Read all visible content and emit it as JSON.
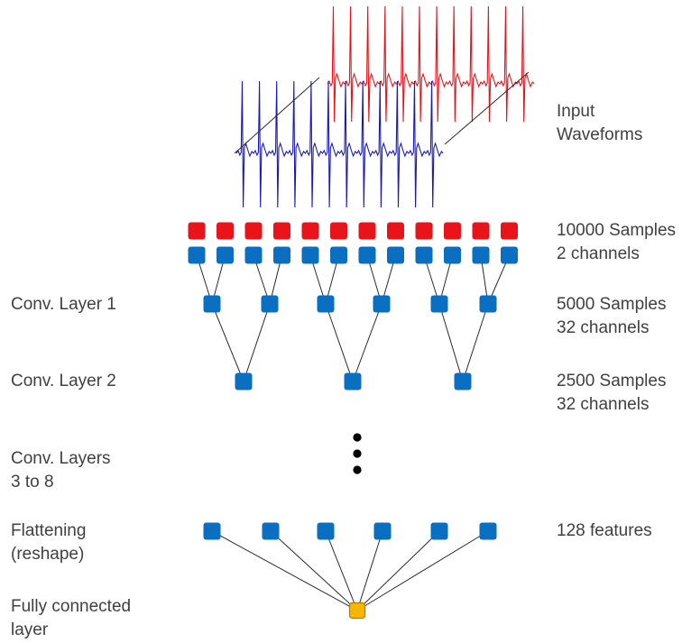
{
  "left_labels": {
    "conv_layer_1": "Conv. Layer 1",
    "conv_layer_2": "Conv. Layer 2",
    "conv_layers_3_8": [
      "Conv. Layers",
      "3 to 8"
    ],
    "flattening": [
      "Flattening",
      "(reshape)"
    ],
    "fully_connected": [
      "Fully connected",
      "layer"
    ]
  },
  "right_labels": {
    "input": [
      "Input",
      "Waveforms"
    ],
    "input_layer": [
      "10000 Samples",
      "2 channels"
    ],
    "layer_1": [
      "5000 Samples",
      "32 channels"
    ],
    "layer_2": [
      "2500 Samples",
      "32 channels"
    ],
    "flatten": "128 features"
  },
  "colors": {
    "channel_1": "#e8141a",
    "channel_2": "#0a6ec1",
    "conv_node": "#0a6ec1",
    "output_node": "#f5b700",
    "output_border": "#b07d00",
    "edge": "#2a2a2a",
    "red_waveform": "#e8141a",
    "blue_waveform": "#1a1ab8",
    "text": "#404040"
  },
  "structure": {
    "input_nodes_per_channel": 12,
    "conv1_nodes": 6,
    "conv2_nodes": 3,
    "ellipsis_dots": 3,
    "flatten_nodes": 6,
    "output_nodes": 1,
    "waveform_beats": 12
  }
}
